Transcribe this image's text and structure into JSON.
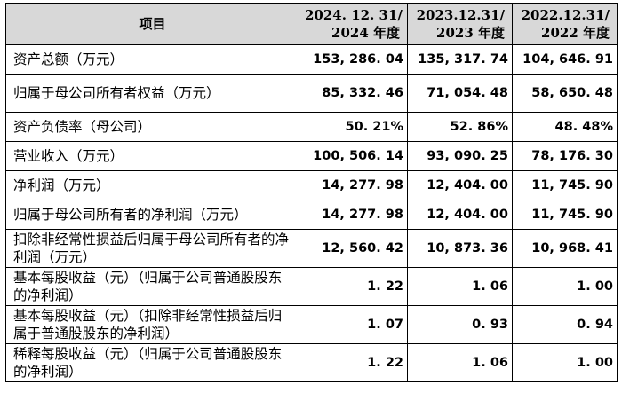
{
  "header": {
    "item": "项目",
    "col1": {
      "line1": "2024. 12. 31/",
      "line2": "2024 年度"
    },
    "col2": {
      "line1": "2023.12.31/",
      "line2": "2023 年度"
    },
    "col3": {
      "line1": "2022.12.31/",
      "line2": "2022 年度"
    }
  },
  "rows": [
    {
      "label": "资产总额（万元）",
      "v2024": "153, 286. 04",
      "v2023": "135, 317. 74",
      "v2022": "104, 646. 91"
    },
    {
      "label": "归属于母公司所有者权益（万元）",
      "v2024": "85, 332. 46",
      "v2023": "71, 054. 48",
      "v2022": "58, 650. 48"
    },
    {
      "label": "资产负债率（母公司）",
      "v2024": "50. 21%",
      "v2023": "52. 86%",
      "v2022": "48. 48%"
    },
    {
      "label": "营业收入（万元）",
      "v2024": "100, 506. 14",
      "v2023": "93, 090. 25",
      "v2022": "78, 176. 30"
    },
    {
      "label": "净利润（万元）",
      "v2024": "14, 277. 98",
      "v2023": "12, 404. 00",
      "v2022": "11, 745. 90"
    },
    {
      "label": "归属于母公司所有者的净利润（万元）",
      "v2024": "14, 277. 98",
      "v2023": "12, 404. 00",
      "v2022": "11, 745. 90"
    },
    {
      "label": "扣除非经常性损益后归属于母公司所有者的净利润（万元）",
      "v2024": "12, 560. 42",
      "v2023": "10, 873. 36",
      "v2022": "10, 968. 41"
    },
    {
      "label": "基本每股收益（元）（归属于公司普通股股东的净利润）",
      "v2024": "1. 22",
      "v2023": "1. 06",
      "v2022": "1. 00"
    },
    {
      "label": "基本每股收益（元）（扣除非经常性损益后归属于普通股股东的净利润）",
      "v2024": "1. 07",
      "v2023": "0. 93",
      "v2022": "0. 94"
    },
    {
      "label": "稀释每股收益（元）（归属于公司普通股股东的净利润）",
      "v2024": "1. 22",
      "v2023": "1. 06",
      "v2022": "1. 00"
    }
  ]
}
